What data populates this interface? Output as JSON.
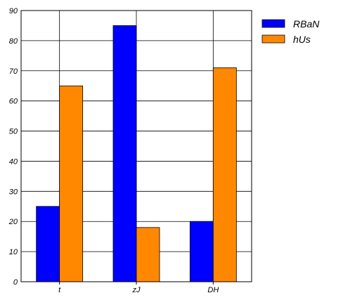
{
  "chart_data": {
    "type": "bar",
    "title": "",
    "xlabel": "",
    "ylabel": "",
    "categories": [
      "t",
      "zJ",
      "DH"
    ],
    "series": [
      {
        "name": "RBaN",
        "values": [
          25,
          85,
          20
        ],
        "color": "#0000ff"
      },
      {
        "name": "hUs",
        "values": [
          65,
          18,
          71
        ],
        "color": "#ff8800"
      }
    ],
    "ylim": [
      0,
      90
    ],
    "yticks": [
      0,
      10,
      20,
      30,
      40,
      50,
      60,
      70,
      80,
      90
    ],
    "grid": true,
    "legend_position": "top-right, outside plot"
  }
}
